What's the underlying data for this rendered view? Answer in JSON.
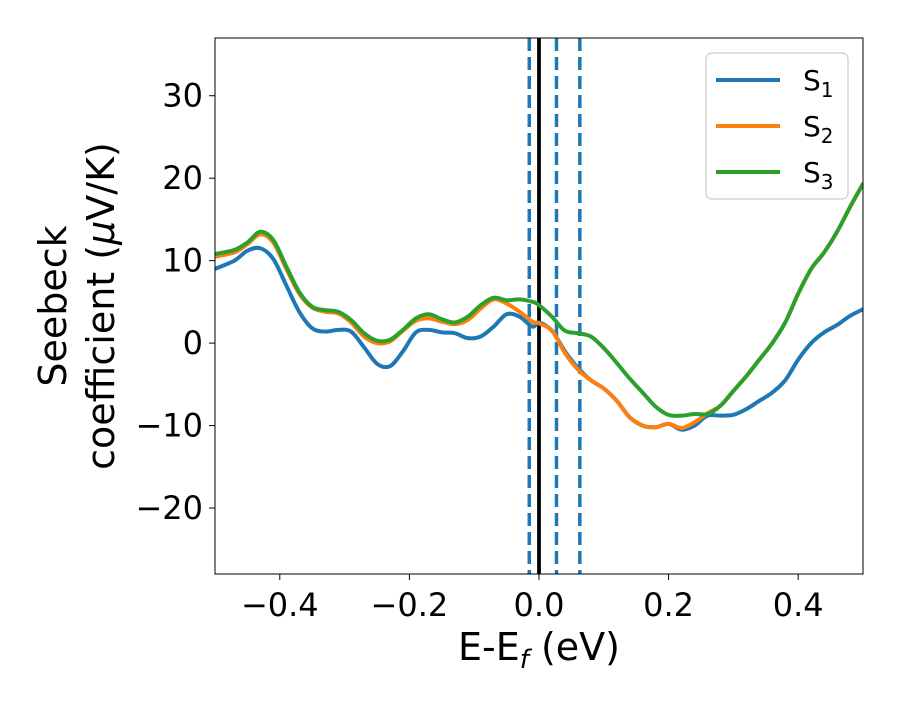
{
  "chart_data": {
    "type": "line",
    "title": "",
    "xlabel": "E-E_f (eV)",
    "xlabel_main": "E-E",
    "xlabel_sub": "f",
    "xlabel_unit": " (eV)",
    "ylabel": "Seebeck coefficient (μV/K)",
    "ylabel_line1": "Seebeck",
    "ylabel_line2_prefix": "coefficient  (",
    "ylabel_line2_mu": "μ",
    "ylabel_line2_suffix": "V/K)",
    "xlim": [
      -0.5,
      0.5
    ],
    "ylim": [
      -28,
      37
    ],
    "xticks": [
      -0.4,
      -0.2,
      0.0,
      0.2,
      0.4
    ],
    "xtick_labels": [
      "−0.4",
      "−0.2",
      "0.0",
      "0.2",
      "0.4"
    ],
    "yticks": [
      -20,
      -10,
      0,
      10,
      20,
      30
    ],
    "ytick_labels": [
      "−20",
      "−10",
      "0",
      "10",
      "20",
      "30"
    ],
    "grid": false,
    "legend_position": "top-right",
    "vertical_lines": [
      {
        "x": 0.0,
        "style": "solid",
        "color": "#000000"
      },
      {
        "x": -0.015,
        "style": "dashed",
        "color": "#1f77b4"
      },
      {
        "x": 0.027,
        "style": "dashed",
        "color": "#1f77b4"
      },
      {
        "x": 0.063,
        "style": "dashed",
        "color": "#1f77b4"
      }
    ],
    "series": [
      {
        "name": "S1",
        "label_main": "S",
        "label_sub": "1",
        "color": "#1f77b4",
        "x": [
          -0.5,
          -0.47,
          -0.45,
          -0.43,
          -0.41,
          -0.39,
          -0.37,
          -0.35,
          -0.33,
          -0.31,
          -0.29,
          -0.27,
          -0.25,
          -0.23,
          -0.21,
          -0.19,
          -0.17,
          -0.15,
          -0.13,
          -0.11,
          -0.09,
          -0.07,
          -0.05,
          -0.03,
          -0.01,
          0.0,
          0.02,
          0.04,
          0.06,
          0.08,
          0.1,
          0.12,
          0.14,
          0.16,
          0.18,
          0.2,
          0.22,
          0.24,
          0.26,
          0.28,
          0.3,
          0.32,
          0.34,
          0.36,
          0.38,
          0.4,
          0.42,
          0.44,
          0.46,
          0.48,
          0.5
        ],
        "values": [
          9,
          10,
          11.2,
          11.5,
          10.2,
          7,
          3.8,
          1.8,
          1.4,
          1.6,
          1.4,
          -0.5,
          -2.5,
          -2.8,
          -1,
          1.3,
          1.6,
          1.3,
          1.2,
          0.6,
          0.8,
          2,
          3.5,
          3.2,
          2,
          2.5,
          1.5,
          -1,
          -3,
          -4.5,
          -5.5,
          -7,
          -9,
          -10,
          -10.2,
          -9.8,
          -10.5,
          -10,
          -8.8,
          -8.8,
          -8.7,
          -8,
          -7,
          -6,
          -4.5,
          -2,
          0,
          1.3,
          2.2,
          3.3,
          4.1
        ]
      },
      {
        "name": "S2",
        "label_main": "S",
        "label_sub": "2",
        "color": "#ff7f0e",
        "x": [
          -0.5,
          -0.47,
          -0.45,
          -0.43,
          -0.41,
          -0.39,
          -0.37,
          -0.35,
          -0.33,
          -0.31,
          -0.29,
          -0.27,
          -0.25,
          -0.23,
          -0.21,
          -0.19,
          -0.17,
          -0.15,
          -0.13,
          -0.11,
          -0.09,
          -0.07,
          -0.05,
          -0.03,
          -0.01,
          0.0,
          0.02,
          0.04,
          0.06,
          0.08,
          0.1,
          0.12,
          0.14,
          0.16,
          0.18,
          0.2,
          0.22,
          0.24,
          0.26,
          0.28,
          0.3,
          0.32,
          0.34,
          0.36,
          0.38,
          0.4,
          0.42,
          0.44,
          0.46,
          0.48,
          0.5
        ],
        "values": [
          10.5,
          11,
          12,
          13.2,
          12.2,
          9,
          6,
          4.3,
          3.8,
          3.6,
          2.5,
          0.8,
          0,
          0.2,
          1.5,
          2.7,
          3,
          2.6,
          2.3,
          2.8,
          4.2,
          5.3,
          4.8,
          3.8,
          2.6,
          2.4,
          1.5,
          -1.2,
          -3.2,
          -4.5,
          -5.5,
          -7,
          -9,
          -10,
          -10.2,
          -9.8,
          -10.3,
          -9.6,
          -8.5,
          -7.6,
          -5.8,
          -4,
          -2,
          0,
          2.5,
          6,
          9,
          11,
          13.5,
          16.5,
          19.3
        ]
      },
      {
        "name": "S3",
        "label_main": "S",
        "label_sub": "3",
        "color": "#2ca02c",
        "x": [
          -0.5,
          -0.47,
          -0.45,
          -0.43,
          -0.41,
          -0.39,
          -0.37,
          -0.35,
          -0.33,
          -0.31,
          -0.29,
          -0.27,
          -0.25,
          -0.23,
          -0.21,
          -0.19,
          -0.17,
          -0.15,
          -0.13,
          -0.11,
          -0.09,
          -0.07,
          -0.05,
          -0.03,
          -0.01,
          0.0,
          0.02,
          0.04,
          0.06,
          0.08,
          0.1,
          0.12,
          0.14,
          0.16,
          0.18,
          0.2,
          0.22,
          0.24,
          0.26,
          0.28,
          0.3,
          0.32,
          0.34,
          0.36,
          0.38,
          0.4,
          0.42,
          0.44,
          0.46,
          0.48,
          0.5
        ],
        "values": [
          10.8,
          11.3,
          12.2,
          13.5,
          12.5,
          9.3,
          6.2,
          4.4,
          4,
          3.8,
          2.8,
          1.2,
          0.3,
          0.4,
          1.6,
          3,
          3.5,
          2.9,
          2.5,
          3.2,
          4.6,
          5.5,
          5.2,
          5.3,
          5,
          4.6,
          3.2,
          1.5,
          1.2,
          0.8,
          -0.6,
          -2.4,
          -4.3,
          -6,
          -7.7,
          -8.7,
          -8.8,
          -8.6,
          -8.6,
          -7.6,
          -5.8,
          -4,
          -2,
          0,
          2.5,
          6,
          9,
          11,
          13.5,
          16.5,
          19.3
        ]
      }
    ]
  }
}
